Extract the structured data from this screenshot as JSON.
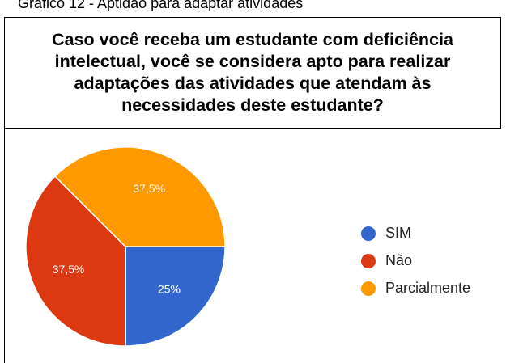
{
  "caption": "Gráfico 12 - Aptidão para adaptar atividades",
  "chart_data": {
    "type": "pie",
    "title": "Caso você receba um estudante com deficiência intelectual, você se considera apto para realizar adaptações das atividades que atendam às necessidades deste estudante?",
    "categories": [
      "SIM",
      "Não",
      "Parcialmente"
    ],
    "values": [
      25,
      37.5,
      37.5
    ],
    "value_labels": [
      "25%",
      "37,5%",
      "37,5%"
    ],
    "colors": [
      "#3366cc",
      "#dc3912",
      "#ff9900"
    ],
    "legend": "right"
  }
}
